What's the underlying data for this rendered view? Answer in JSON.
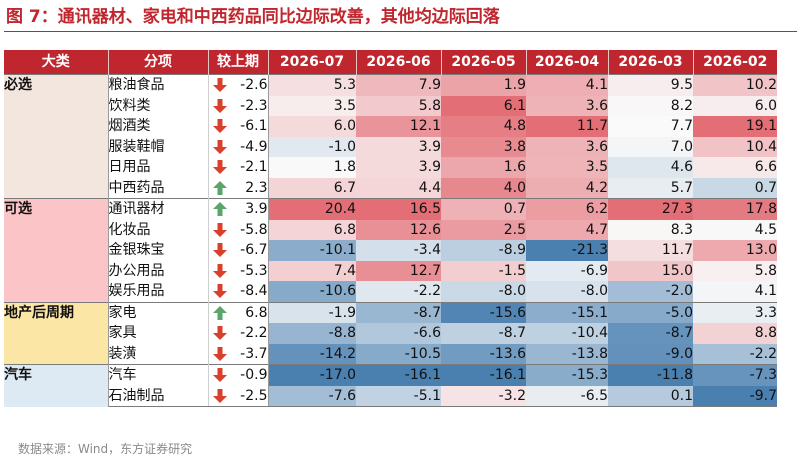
{
  "title": "图 7：通讯器材、家电和中西药品同比边际改善，其他均边际回落",
  "source": "数据来源：Wind，东方证券研究",
  "chart_data": {
    "type": "table",
    "columns": [
      "大类",
      "分项",
      "较上期",
      "2026-07",
      "2026-06",
      "2026-05",
      "2026-04",
      "2026-03",
      "2026-02"
    ],
    "groups": [
      {
        "name": "必选",
        "color": "#f3e6de",
        "rows": [
          {
            "item": "粮油食品",
            "change": -2.6,
            "change_text": "-2.6",
            "values": [
              5.3,
              7.9,
              1.9,
              4.1,
              9.5,
              10.2
            ]
          },
          {
            "item": "饮料类",
            "change": -2.3,
            "change_text": "-2.3",
            "values": [
              3.5,
              5.8,
              6.1,
              3.6,
              8.2,
              6.0
            ]
          },
          {
            "item": "烟酒类",
            "change": -6.1,
            "change_text": "-6.1",
            "values": [
              6.0,
              12.1,
              4.8,
              11.7,
              7.7,
              19.1
            ]
          },
          {
            "item": "服装鞋帽",
            "change": -4.9,
            "change_text": "-4.9",
            "values": [
              -1.0,
              3.9,
              3.8,
              3.6,
              7.0,
              10.4
            ]
          },
          {
            "item": "日用品",
            "change": -2.1,
            "change_text": "-2.1",
            "values": [
              1.8,
              3.9,
              1.6,
              3.5,
              4.6,
              6.6
            ]
          },
          {
            "item": "中西药品",
            "change": 2.3,
            "change_text": "2.3",
            "values": [
              6.7,
              4.4,
              4.0,
              4.2,
              5.7,
              0.7
            ]
          }
        ]
      },
      {
        "name": "可选",
        "color": "#fbc4c7",
        "rows": [
          {
            "item": "通讯器材",
            "change": 3.9,
            "change_text": "3.9",
            "values": [
              20.4,
              16.5,
              0.7,
              6.2,
              27.3,
              17.8
            ]
          },
          {
            "item": "化妆品",
            "change": -5.8,
            "change_text": "-5.8",
            "values": [
              6.8,
              12.6,
              2.5,
              4.7,
              8.3,
              4.5
            ]
          },
          {
            "item": "金银珠宝",
            "change": -6.7,
            "change_text": "-6.7",
            "values": [
              -10.1,
              -3.4,
              -8.9,
              -21.3,
              11.7,
              13.0
            ]
          },
          {
            "item": "办公用品",
            "change": -5.3,
            "change_text": "-5.3",
            "values": [
              7.4,
              12.7,
              -1.5,
              -6.9,
              15.0,
              5.8
            ]
          },
          {
            "item": "娱乐用品",
            "change": -8.4,
            "change_text": "-8.4",
            "values": [
              -10.6,
              -2.2,
              -8.0,
              -8.0,
              -2.0,
              4.1
            ]
          }
        ]
      },
      {
        "name": "地产后周期",
        "color": "#fbe6a6",
        "rows": [
          {
            "item": "家电",
            "change": 6.8,
            "change_text": "6.8",
            "values": [
              -1.9,
              -8.7,
              -15.6,
              -15.1,
              -5.0,
              3.3
            ]
          },
          {
            "item": "家具",
            "change": -2.2,
            "change_text": "-2.2",
            "values": [
              -8.8,
              -6.6,
              -8.7,
              -10.4,
              -8.7,
              8.8
            ]
          },
          {
            "item": "装潢",
            "change": -3.7,
            "change_text": "-3.7",
            "values": [
              -14.2,
              -10.5,
              -13.6,
              -13.8,
              -9.0,
              -2.2
            ]
          }
        ]
      },
      {
        "name": "汽车",
        "color": "#deeaf3",
        "rows": [
          {
            "item": "汽车",
            "change": -0.9,
            "change_text": "-0.9",
            "values": [
              -17.0,
              -16.1,
              -16.1,
              -15.3,
              -11.8,
              -7.3
            ]
          },
          {
            "item": "石油制品",
            "change": -2.5,
            "change_text": "-2.5",
            "values": [
              -7.6,
              -5.1,
              -3.2,
              -6.5,
              0.1,
              -9.7
            ]
          }
        ]
      }
    ],
    "arrow_colors": {
      "down": "#d9402b",
      "up": "#5aa56a"
    }
  }
}
